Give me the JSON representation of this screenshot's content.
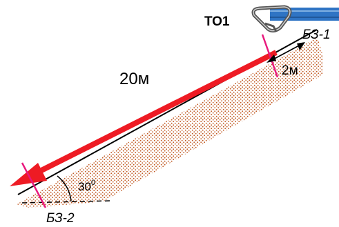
{
  "labels": {
    "anchor": "ТО1",
    "top_station": "БЗ-1",
    "bottom_station": "БЗ-2",
    "rope_length": "20м",
    "offset": "2м",
    "angle_value": "30",
    "angle_unit": "0"
  },
  "colors": {
    "rope": "#ee1b24",
    "station_mark": "#e8197d",
    "rope_blue": "#2f74c4",
    "slope_dots": "#c0571f",
    "line": "#000000"
  }
}
